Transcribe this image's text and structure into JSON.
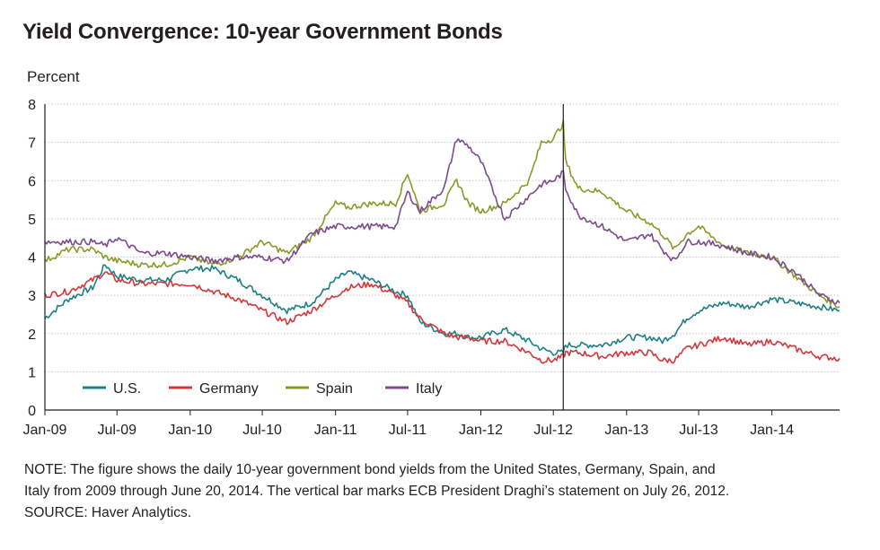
{
  "chart_data": {
    "type": "line",
    "title": "Yield Convergence: 10-year Government Bonds",
    "ylabel": "Percent",
    "xlabel": "",
    "ylim": [
      0,
      8
    ],
    "xlim": [
      "2009-01-01",
      "2014-06-20"
    ],
    "yticks": [
      0,
      1,
      2,
      3,
      4,
      5,
      6,
      7,
      8
    ],
    "xticks": [
      {
        "date": "2009-01-01",
        "label": "Jan-09"
      },
      {
        "date": "2009-07-01",
        "label": "Jul-09"
      },
      {
        "date": "2010-01-01",
        "label": "Jan-10"
      },
      {
        "date": "2010-07-01",
        "label": "Jul-10"
      },
      {
        "date": "2011-01-01",
        "label": "Jan-11"
      },
      {
        "date": "2011-07-01",
        "label": "Jul-11"
      },
      {
        "date": "2012-01-01",
        "label": "Jan-12"
      },
      {
        "date": "2012-07-01",
        "label": "Jul-12"
      },
      {
        "date": "2013-01-01",
        "label": "Jan-13"
      },
      {
        "date": "2013-07-01",
        "label": "Jul-13"
      },
      {
        "date": "2014-01-01",
        "label": "Jan-14"
      }
    ],
    "grid": true,
    "legend_position": "bottom-left",
    "vertical_marker": {
      "date": "2012-07-26"
    },
    "x": [
      "2009-01-01",
      "2009-03-01",
      "2009-05-01",
      "2009-06-01",
      "2009-07-01",
      "2009-09-01",
      "2009-11-01",
      "2010-01-01",
      "2010-03-01",
      "2010-05-01",
      "2010-07-01",
      "2010-09-01",
      "2010-11-01",
      "2011-01-01",
      "2011-02-01",
      "2011-04-01",
      "2011-06-01",
      "2011-07-01",
      "2011-08-01",
      "2011-10-01",
      "2011-11-01",
      "2011-12-01",
      "2012-01-01",
      "2012-03-01",
      "2012-05-01",
      "2012-06-01",
      "2012-07-01",
      "2012-07-26",
      "2012-08-01",
      "2012-09-01",
      "2012-11-01",
      "2013-01-01",
      "2013-03-01",
      "2013-04-01",
      "2013-05-01",
      "2013-06-01",
      "2013-07-01",
      "2013-09-01",
      "2013-11-01",
      "2014-01-01",
      "2014-03-01",
      "2014-05-01",
      "2014-06-20"
    ],
    "series": [
      {
        "name": "U.S.",
        "color": "#1e7f85",
        "values": [
          2.4,
          2.9,
          3.2,
          3.8,
          3.5,
          3.4,
          3.4,
          3.7,
          3.7,
          3.4,
          3.0,
          2.6,
          2.8,
          3.4,
          3.6,
          3.4,
          3.1,
          3.0,
          2.3,
          2.0,
          2.0,
          1.9,
          1.9,
          2.1,
          1.8,
          1.6,
          1.5,
          1.5,
          1.7,
          1.7,
          1.7,
          1.9,
          1.9,
          1.8,
          2.0,
          2.4,
          2.6,
          2.8,
          2.7,
          2.9,
          2.8,
          2.7,
          2.6
        ]
      },
      {
        "name": "Germany",
        "color": "#d2373b",
        "values": [
          3.0,
          3.1,
          3.4,
          3.6,
          3.4,
          3.3,
          3.3,
          3.3,
          3.1,
          2.9,
          2.6,
          2.3,
          2.6,
          3.0,
          3.2,
          3.3,
          3.0,
          2.8,
          2.4,
          2.0,
          1.9,
          1.9,
          1.8,
          1.8,
          1.5,
          1.3,
          1.3,
          1.4,
          1.5,
          1.5,
          1.4,
          1.5,
          1.5,
          1.3,
          1.3,
          1.6,
          1.7,
          1.9,
          1.7,
          1.8,
          1.6,
          1.4,
          1.35
        ]
      },
      {
        "name": "Spain",
        "color": "#8a9a2a",
        "values": [
          3.9,
          4.2,
          4.2,
          4.0,
          3.9,
          3.8,
          3.8,
          4.0,
          3.8,
          4.0,
          4.4,
          4.1,
          4.5,
          5.4,
          5.3,
          5.4,
          5.4,
          6.2,
          5.2,
          5.4,
          6.0,
          5.4,
          5.2,
          5.4,
          6.0,
          7.0,
          7.1,
          7.5,
          6.5,
          5.8,
          5.7,
          5.2,
          4.9,
          4.6,
          4.2,
          4.6,
          4.8,
          4.3,
          4.1,
          4.0,
          3.5,
          3.0,
          2.7
        ]
      },
      {
        "name": "Italy",
        "color": "#7b4b8c",
        "values": [
          4.4,
          4.4,
          4.4,
          4.3,
          4.5,
          4.1,
          4.1,
          4.0,
          3.9,
          4.0,
          4.0,
          3.9,
          4.6,
          4.8,
          4.8,
          4.8,
          4.8,
          5.7,
          5.2,
          5.8,
          7.1,
          6.9,
          6.5,
          5.0,
          5.6,
          5.9,
          6.0,
          6.2,
          5.8,
          5.1,
          4.8,
          4.4,
          4.6,
          4.2,
          3.9,
          4.4,
          4.4,
          4.3,
          4.1,
          4.0,
          3.6,
          3.0,
          2.8
        ]
      }
    ]
  },
  "note": {
    "line1": "NOTE: The figure shows the daily 10-year government bond yields from the United States, Germany, Spain, and",
    "line2": "Italy from 2009 through June 20, 2014. The vertical bar marks ECB President Draghi’s statement on July 26, 2012.",
    "line3": "SOURCE: Haver Analytics."
  }
}
